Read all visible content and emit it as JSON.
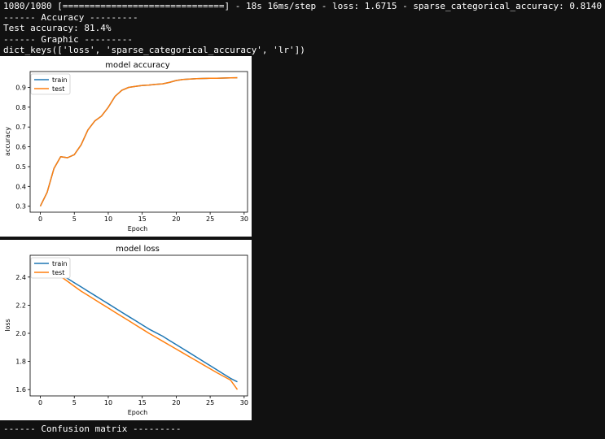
{
  "terminal": {
    "progress_line": "1080/1080 [==============================] - 18s 16ms/step - loss: 1.6715 - sparse_categorical_accuracy: 0.8140",
    "accuracy_header": "------ Accuracy ---------",
    "test_accuracy_line": "Test accuracy: 81.4%",
    "graphic_header": "------ Graphic ---------",
    "dict_keys_line": "dict_keys(['loss', 'sparse_categorical_accuracy', 'lr'])",
    "confusion_header": "------ Confusion matrix ---------"
  },
  "colors": {
    "train": "#1f77b4",
    "test": "#ff7f0e",
    "background": "#111111"
  },
  "chart_data": [
    {
      "type": "line",
      "title": "model accuracy",
      "xlabel": "Epoch",
      "ylabel": "accuracy",
      "xlim": [
        -1.5,
        30.5
      ],
      "ylim": [
        0.27,
        0.98
      ],
      "xticks": [
        0,
        5,
        10,
        15,
        20,
        25,
        30
      ],
      "xtick_labels": [
        "0",
        "5",
        "10",
        "15",
        "20",
        "25",
        "30"
      ],
      "yticks": [
        0.3,
        0.4,
        0.5,
        0.6,
        0.7,
        0.8,
        0.9
      ],
      "ytick_labels": [
        "0.3",
        "0.4",
        "0.5",
        "0.6",
        "0.7",
        "0.8",
        "0.9"
      ],
      "legend": "upper left",
      "x": [
        0,
        1,
        2,
        3,
        4,
        5,
        6,
        7,
        8,
        9,
        10,
        11,
        12,
        13,
        14,
        15,
        16,
        17,
        18,
        19,
        20,
        21,
        22,
        23,
        24,
        25,
        26,
        27,
        28,
        29
      ],
      "series": [
        {
          "name": "train",
          "values": [
            0.3,
            0.37,
            0.49,
            0.55,
            0.545,
            0.56,
            0.61,
            0.685,
            0.73,
            0.755,
            0.8,
            0.855,
            0.885,
            0.9,
            0.905,
            0.91,
            0.912,
            0.915,
            0.918,
            0.925,
            0.935,
            0.94,
            0.942,
            0.944,
            0.945,
            0.946,
            0.946,
            0.947,
            0.948,
            0.949
          ]
        },
        {
          "name": "test",
          "values": [
            0.3,
            0.37,
            0.49,
            0.55,
            0.545,
            0.56,
            0.61,
            0.685,
            0.73,
            0.755,
            0.8,
            0.855,
            0.885,
            0.9,
            0.905,
            0.91,
            0.912,
            0.915,
            0.918,
            0.925,
            0.935,
            0.94,
            0.942,
            0.944,
            0.945,
            0.946,
            0.946,
            0.947,
            0.948,
            0.949
          ]
        }
      ]
    },
    {
      "type": "line",
      "title": "model loss",
      "xlabel": "Epoch",
      "ylabel": "loss",
      "xlim": [
        -1.5,
        30.5
      ],
      "ylim": [
        1.555,
        2.555
      ],
      "xticks": [
        0,
        5,
        10,
        15,
        20,
        25,
        30
      ],
      "xtick_labels": [
        "0",
        "5",
        "10",
        "15",
        "20",
        "25",
        "30"
      ],
      "yticks": [
        1.6,
        1.8,
        2.0,
        2.2,
        2.4
      ],
      "ytick_labels": [
        "1.6",
        "1.8",
        "2.0",
        "2.2",
        "2.4"
      ],
      "legend": "upper left",
      "x": [
        0,
        1,
        2,
        3,
        4,
        5,
        6,
        7,
        8,
        9,
        10,
        11,
        12,
        13,
        14,
        15,
        16,
        17,
        18,
        19,
        20,
        21,
        22,
        23,
        24,
        25,
        26,
        27,
        28,
        29
      ],
      "series": [
        {
          "name": "train",
          "values": [
            2.51,
            2.48,
            2.45,
            2.42,
            2.39,
            2.36,
            2.33,
            2.3,
            2.27,
            2.24,
            2.21,
            2.18,
            2.15,
            2.12,
            2.09,
            2.06,
            2.03,
            2.005,
            1.98,
            1.95,
            1.92,
            1.89,
            1.86,
            1.83,
            1.8,
            1.77,
            1.74,
            1.71,
            1.68,
            1.655
          ]
        },
        {
          "name": "test",
          "values": [
            2.51,
            2.475,
            2.44,
            2.405,
            2.37,
            2.335,
            2.3,
            2.27,
            2.24,
            2.21,
            2.18,
            2.15,
            2.12,
            2.09,
            2.06,
            2.03,
            2.0,
            1.972,
            1.944,
            1.916,
            1.888,
            1.86,
            1.832,
            1.804,
            1.776,
            1.748,
            1.72,
            1.694,
            1.668,
            1.6
          ]
        }
      ]
    }
  ]
}
